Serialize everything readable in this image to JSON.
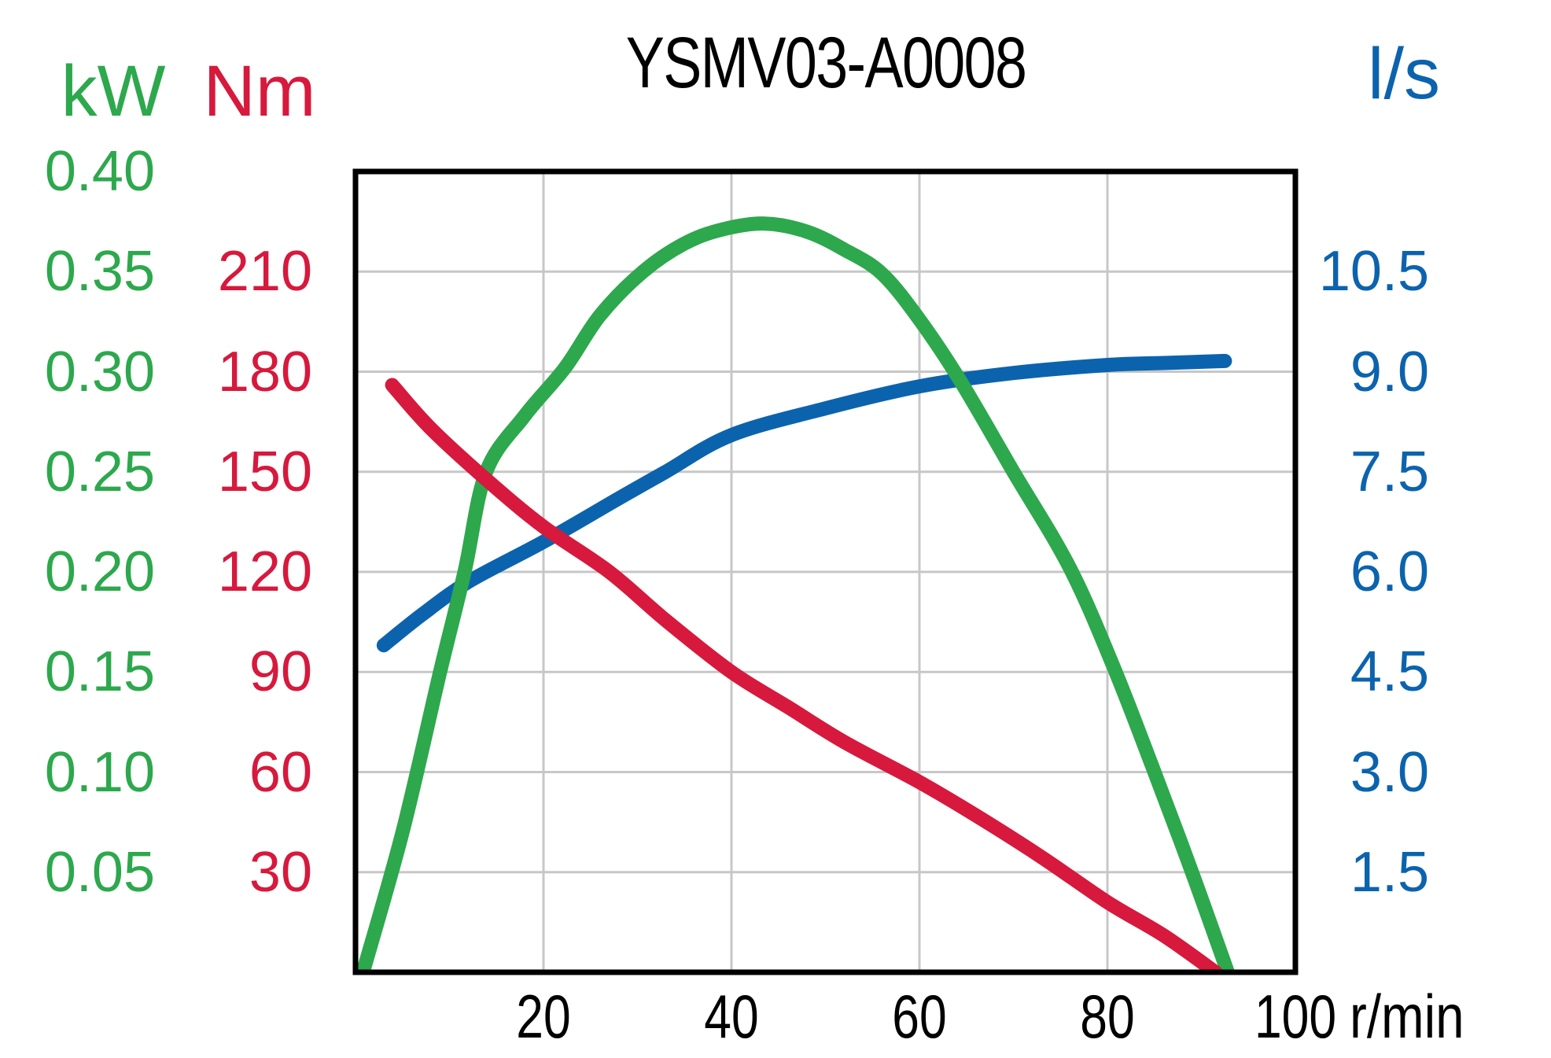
{
  "title": "YSMV03-A0008",
  "colors": {
    "power": "#2DA84D",
    "torque": "#D6193C",
    "flow": "#0C63AD",
    "grid": "#C7C7C7",
    "frame": "#000000",
    "background": "#FFFFFF"
  },
  "axes": {
    "power": {
      "unit": "kW",
      "side": "outer-left",
      "min": 0,
      "max": 0.4,
      "tick_labels": [
        "0.40",
        "0.35",
        "0.30",
        "0.25",
        "0.20",
        "0.15",
        "0.10",
        "0.05"
      ],
      "tick_rows": [
        0,
        1,
        2,
        3,
        4,
        5,
        6,
        7
      ]
    },
    "torque": {
      "unit": "Nm",
      "side": "inner-left",
      "min": 0,
      "max": 240,
      "tick_labels": [
        "210",
        "180",
        "150",
        "120",
        "90",
        "60",
        "30"
      ],
      "tick_rows": [
        1,
        2,
        3,
        4,
        5,
        6,
        7
      ]
    },
    "flow": {
      "unit": "l/s",
      "side": "right",
      "min": 0,
      "max": 12,
      "tick_labels": [
        "10.5",
        "9.0",
        "7.5",
        "6.0",
        "4.5",
        "3.0",
        "1.5"
      ],
      "tick_rows": [
        1,
        2,
        3,
        4,
        5,
        6,
        7
      ]
    },
    "x": {
      "unit": "r/min",
      "min": 0,
      "max": 100,
      "tick_labels": [
        "20",
        "40",
        "60",
        "80",
        "100"
      ],
      "tick_values": [
        20,
        40,
        60,
        80,
        100
      ]
    }
  },
  "chart_data": {
    "type": "line",
    "title": "YSMV03-A0008",
    "xlabel": "r/min",
    "x_range": [
      0,
      100
    ],
    "grid": true,
    "legend_position": "none",
    "series": [
      {
        "name": "power",
        "unit": "kW",
        "axis": "power",
        "color": "#2DA84D",
        "points": [
          [
            0.8,
            0
          ],
          [
            5,
            0.07
          ],
          [
            9,
            0.15
          ],
          [
            11.6,
            0.2
          ],
          [
            13.9,
            0.25
          ],
          [
            18,
            0.278
          ],
          [
            22.3,
            0.302
          ],
          [
            26,
            0.328
          ],
          [
            30.6,
            0.35
          ],
          [
            35,
            0.364
          ],
          [
            39,
            0.371
          ],
          [
            43.5,
            0.374
          ],
          [
            48,
            0.37
          ],
          [
            52,
            0.361
          ],
          [
            56,
            0.349
          ],
          [
            60,
            0.326
          ],
          [
            64.4,
            0.295
          ],
          [
            70,
            0.25
          ],
          [
            76,
            0.202
          ],
          [
            80.7,
            0.152
          ],
          [
            85,
            0.1
          ],
          [
            89,
            0.05
          ],
          [
            92.8,
            0
          ]
        ]
      },
      {
        "name": "torque",
        "unit": "Nm",
        "axis": "torque",
        "color": "#D6193C",
        "points": [
          [
            3.9,
            176
          ],
          [
            8,
            163
          ],
          [
            14,
            147.5
          ],
          [
            20,
            133.5
          ],
          [
            27,
            120
          ],
          [
            33,
            105.5
          ],
          [
            40,
            90
          ],
          [
            46,
            79.5
          ],
          [
            52,
            69
          ],
          [
            60,
            57
          ],
          [
            66,
            47
          ],
          [
            73,
            34.5
          ],
          [
            80,
            21
          ],
          [
            86,
            11
          ],
          [
            91.5,
            0
          ]
        ]
      },
      {
        "name": "flow",
        "unit": "l/s",
        "axis": "flow",
        "color": "#0C63AD",
        "points": [
          [
            3,
            4.9
          ],
          [
            7,
            5.35
          ],
          [
            12,
            5.85
          ],
          [
            20,
            6.45
          ],
          [
            28,
            7.1
          ],
          [
            33,
            7.5
          ],
          [
            40,
            8.05
          ],
          [
            50,
            8.45
          ],
          [
            60,
            8.78
          ],
          [
            70,
            8.98
          ],
          [
            80,
            9.1
          ],
          [
            86,
            9.13
          ],
          [
            92.5,
            9.16
          ]
        ]
      }
    ]
  }
}
